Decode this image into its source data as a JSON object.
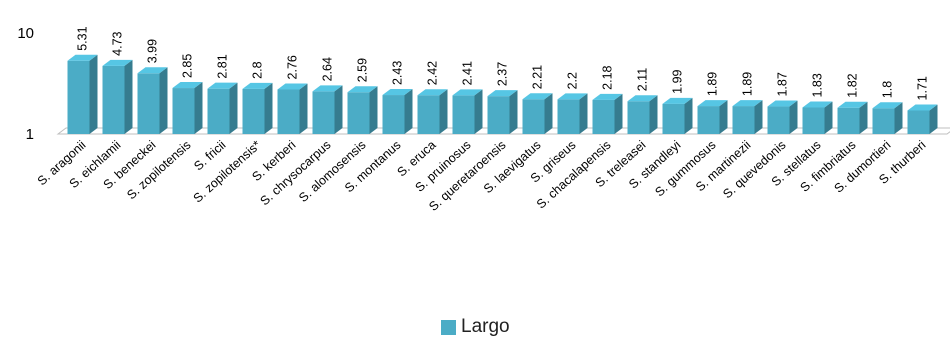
{
  "chart_data": {
    "type": "bar",
    "yscale": "log",
    "ylim": [
      1,
      10
    ],
    "yticks": [
      "1",
      "10"
    ],
    "categories": [
      "S. aragonii",
      "S. eichlamii",
      "S. beneckei",
      "S. zopilotensis",
      "S. fricii",
      "S. zopilotensis*",
      "S. kerberi",
      "S. chrysocarpus",
      "S. alomosensis",
      "S. montanus",
      "S. eruca",
      "S. pruinosus",
      "S. queretaroensis",
      "S. laevigatus",
      "S. griseus",
      "S. chacalapensis",
      "S. treleasei",
      "S. standleyi",
      "S. gummosus",
      "S. martinezii",
      "S. quevedonis",
      "S. stellatus",
      "S. fimbriatus",
      "S. dumortieri",
      "S. thurberi"
    ],
    "series": [
      {
        "name": "Largo",
        "color": "#4bacc6",
        "values": [
          5.31,
          4.73,
          3.99,
          2.85,
          2.81,
          2.8,
          2.76,
          2.64,
          2.59,
          2.43,
          2.42,
          2.41,
          2.37,
          2.21,
          2.2,
          2.18,
          2.11,
          1.99,
          1.89,
          1.89,
          1.87,
          1.83,
          1.82,
          1.8,
          1.71
        ],
        "labels": [
          "5.31",
          "4.73",
          "3.99",
          "2.85",
          "2.81",
          "2.8",
          "2.76",
          "2.64",
          "2.59",
          "2.43",
          "2.42",
          "2.41",
          "2.37",
          "2.21",
          "2.2",
          "2.18",
          "2.11",
          "1.99",
          "1.89",
          "1.89",
          "1.87",
          "1.83",
          "1.82",
          "1.8",
          "1.71"
        ]
      }
    ],
    "legend": "bottom-center",
    "grid": false,
    "style": "3d"
  }
}
